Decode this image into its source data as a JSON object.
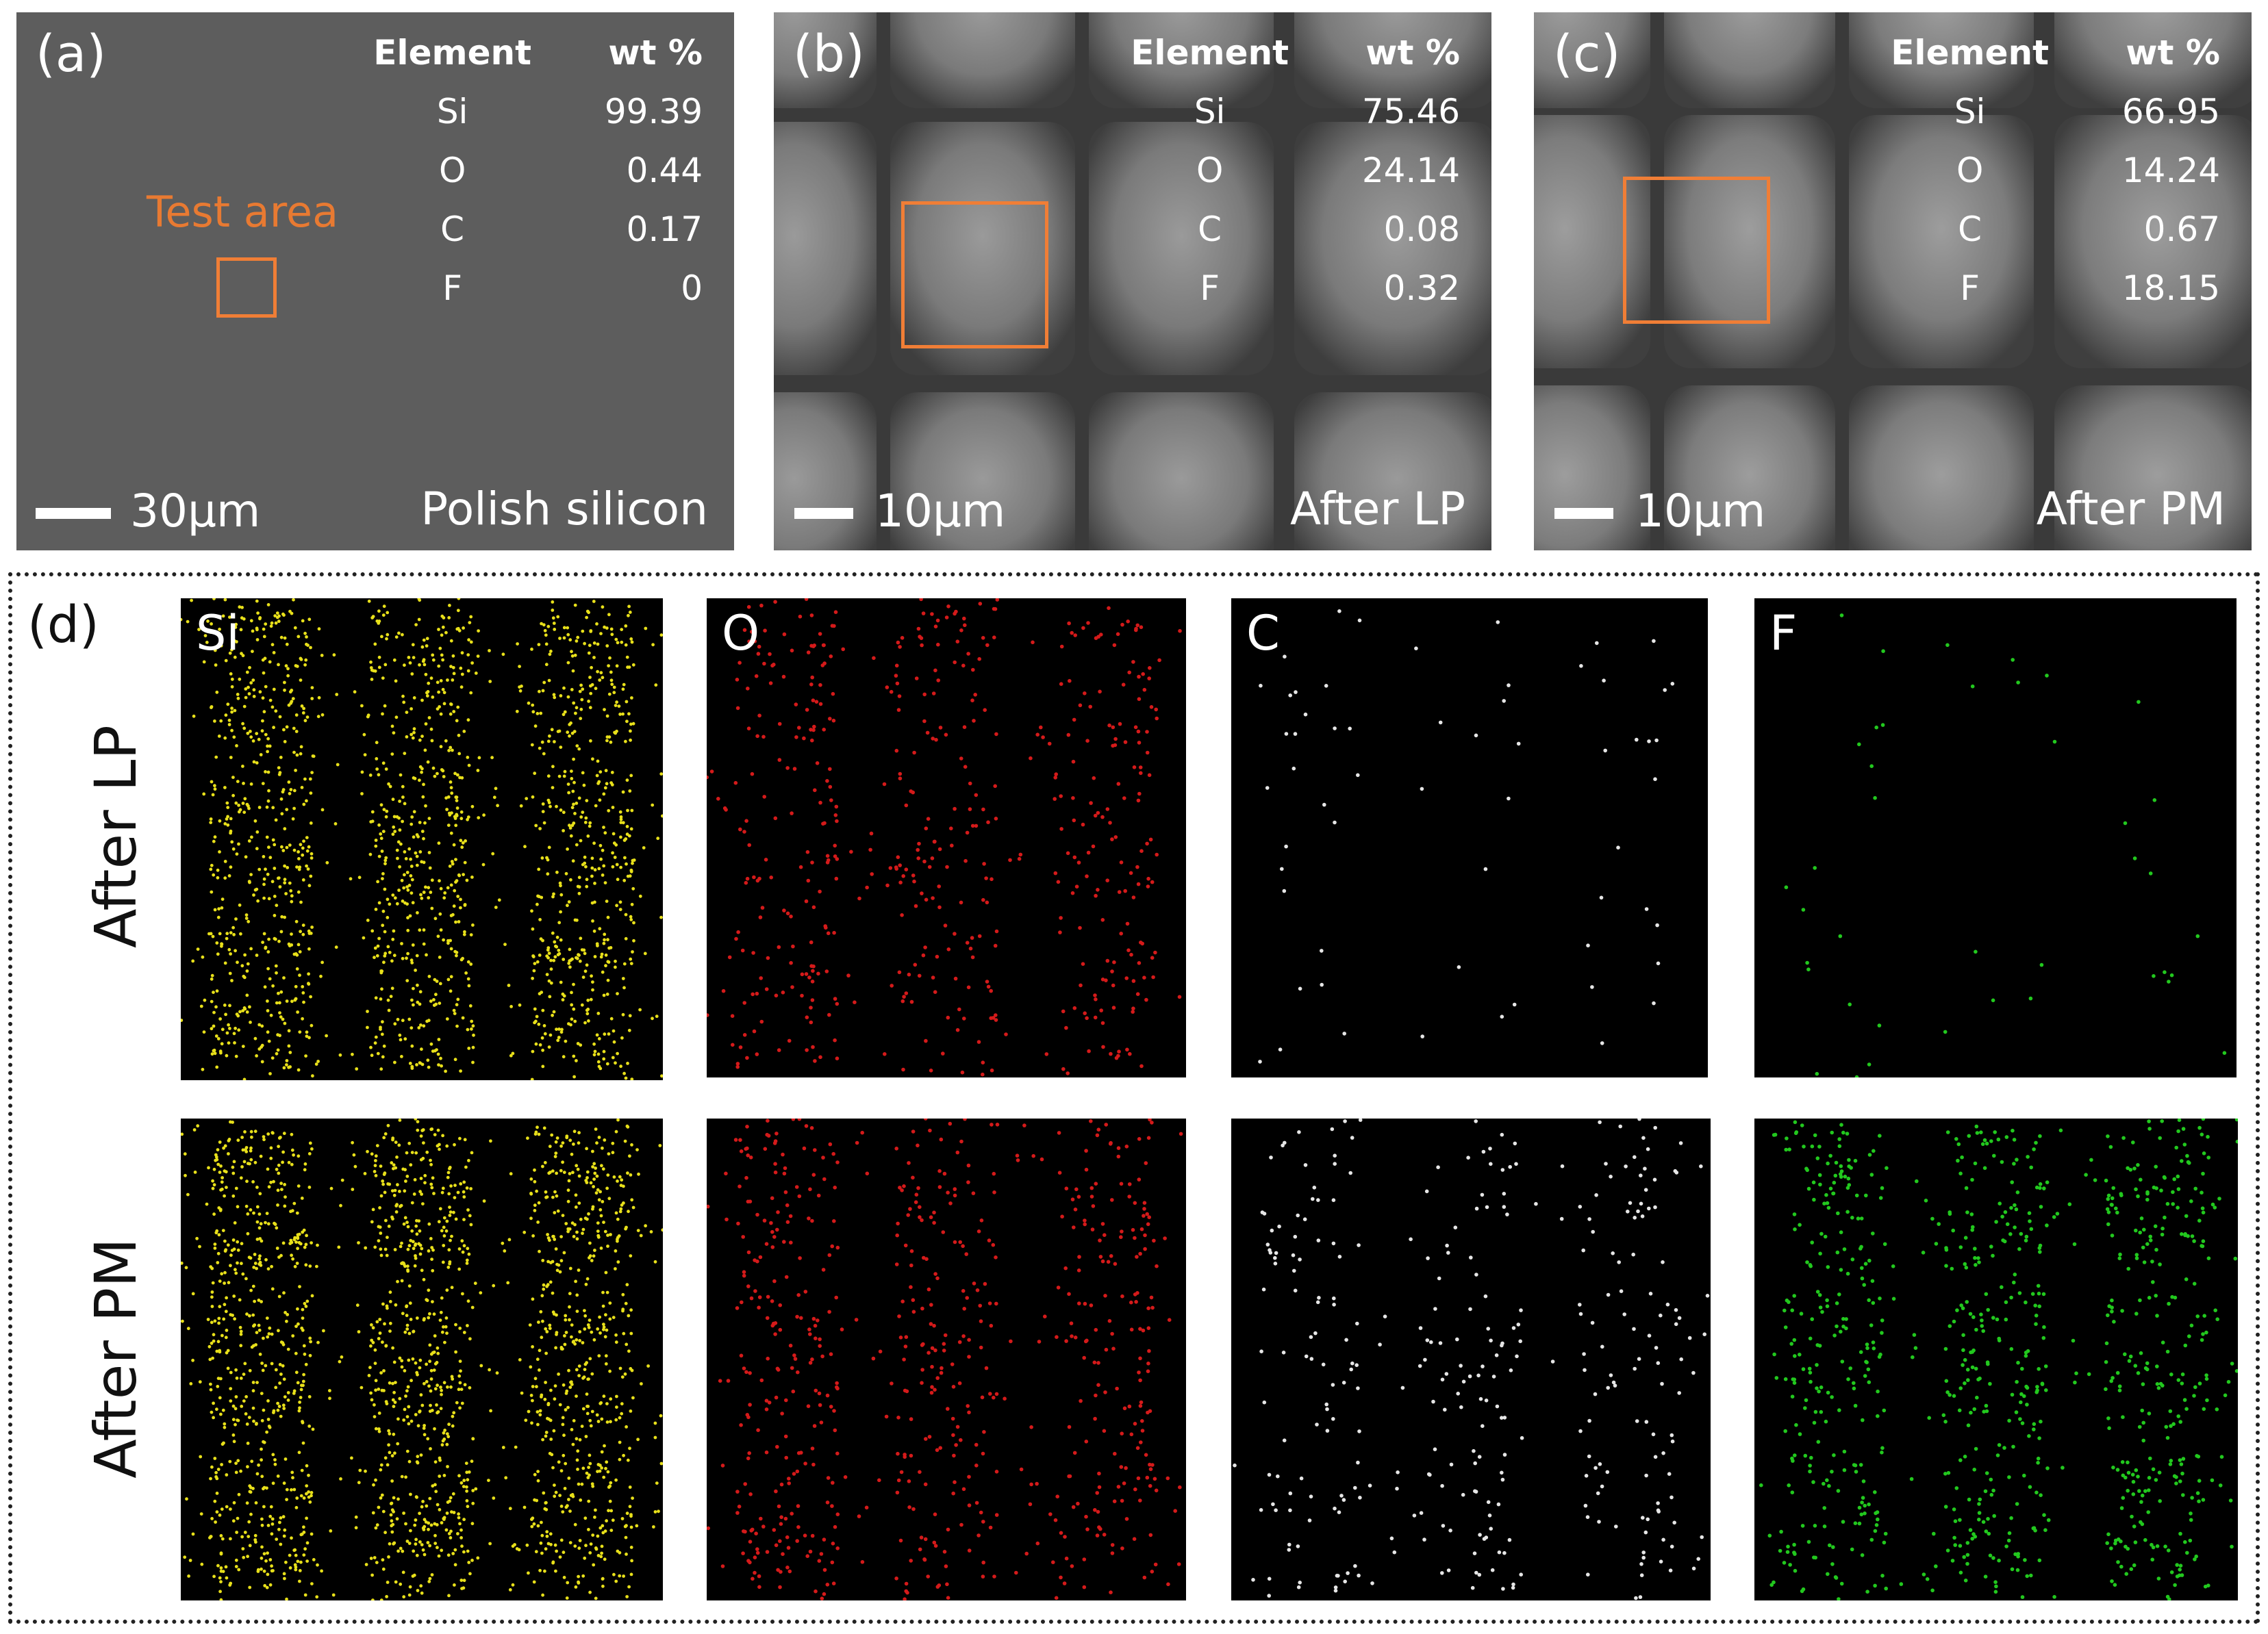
{
  "panel_a": {
    "label": "(a)",
    "table": {
      "headers": [
        "Element",
        "wt %"
      ],
      "rows": [
        [
          "Si",
          "99.39"
        ],
        [
          "O",
          "0.44"
        ],
        [
          "C",
          "0.17"
        ],
        [
          "F",
          "0"
        ]
      ]
    },
    "test_area_label": "Test area",
    "scale_label": "30μm",
    "sample_label": "Polish silicon"
  },
  "panel_b": {
    "label": "(b)",
    "table": {
      "headers": [
        "Element",
        "wt %"
      ],
      "rows": [
        [
          "Si",
          "75.46"
        ],
        [
          "O",
          "24.14"
        ],
        [
          "C",
          "0.08"
        ],
        [
          "F",
          "0.32"
        ]
      ]
    },
    "scale_label": "10μm",
    "sample_label": "After LP"
  },
  "panel_c": {
    "label": "(c)",
    "table": {
      "headers": [
        "Element",
        "wt %"
      ],
      "rows": [
        [
          "Si",
          "66.95"
        ],
        [
          "O",
          "14.24"
        ],
        [
          "C",
          "0.67"
        ],
        [
          "F",
          "18.15"
        ]
      ]
    },
    "scale_label": "10μm",
    "sample_label": "After PM"
  },
  "panel_d": {
    "label": "(d)",
    "rows": [
      "After LP",
      "After PM"
    ],
    "elements": [
      "Si",
      "O",
      "C",
      "F"
    ]
  },
  "colors": {
    "Si": "#e8e01a",
    "O": "#d41a1a",
    "C": "#e6e6e6",
    "F": "#22c81e",
    "highlight": "#f07e36"
  }
}
